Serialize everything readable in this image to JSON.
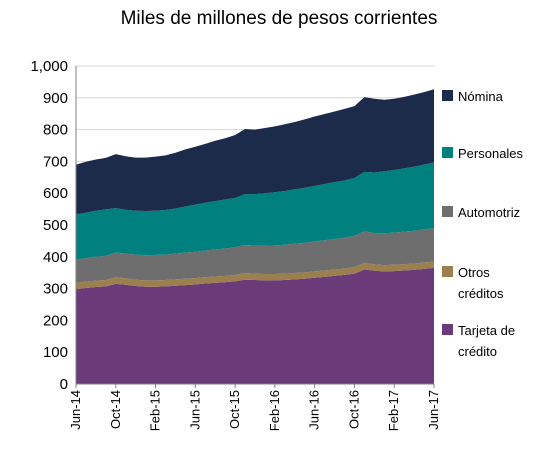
{
  "chart_data": {
    "type": "area",
    "stacked": true,
    "title": "Miles de millones de pesos corrientes",
    "xlabel": "",
    "ylabel": "",
    "ylim": [
      0,
      1000
    ],
    "y_ticks": [
      0,
      100,
      200,
      300,
      400,
      500,
      600,
      700,
      800,
      900,
      1000
    ],
    "y_tick_labels": [
      "0",
      "100",
      "200",
      "300",
      "400",
      "500",
      "600",
      "700",
      "800",
      "900",
      "1,000"
    ],
    "x": [
      "Jun-14",
      "Jul-14",
      "Aug-14",
      "Sep-14",
      "Oct-14",
      "Nov-14",
      "Dec-14",
      "Jan-15",
      "Feb-15",
      "Mar-15",
      "Apr-15",
      "May-15",
      "Jun-15",
      "Jul-15",
      "Aug-15",
      "Sep-15",
      "Oct-15",
      "Nov-15",
      "Dec-15",
      "Jan-16",
      "Feb-16",
      "Mar-16",
      "Apr-16",
      "May-16",
      "Jun-16",
      "Jul-16",
      "Aug-16",
      "Sep-16",
      "Oct-16",
      "Nov-16",
      "Dec-16",
      "Jan-17",
      "Feb-17",
      "Mar-17",
      "Apr-17",
      "May-17",
      "Jun-17"
    ],
    "x_tick_labels": [
      "Jun-14",
      "Oct-14",
      "Feb-15",
      "Jun-15",
      "Oct-15",
      "Feb-16",
      "Jun-16",
      "Oct-16",
      "Feb-17",
      "Jun-17"
    ],
    "legend_position": "right",
    "grid": true,
    "series": [
      {
        "name": "Tarjeta de crédito",
        "color": "#6b3a78",
        "values": [
          298,
          302,
          305,
          307,
          315,
          312,
          308,
          306,
          306,
          307,
          309,
          311,
          313,
          316,
          318,
          320,
          323,
          328,
          327,
          326,
          326,
          327,
          329,
          331,
          334,
          337,
          340,
          343,
          347,
          360,
          356,
          354,
          355,
          357,
          359,
          362,
          365
        ]
      },
      {
        "name": "Otros créditos",
        "color": "#9c7f4f",
        "values": [
          20,
          20,
          20,
          20,
          21,
          20,
          20,
          20,
          20,
          20,
          20,
          20,
          20,
          20,
          20,
          20,
          20,
          21,
          20,
          20,
          20,
          20,
          20,
          20,
          20,
          20,
          20,
          20,
          21,
          21,
          20,
          20,
          20,
          20,
          20,
          20,
          20
        ]
      },
      {
        "name": "Automotriz",
        "color": "#6e6e6e",
        "values": [
          73,
          74,
          75,
          76,
          77,
          78,
          79,
          79,
          80,
          80,
          81,
          82,
          83,
          84,
          85,
          86,
          87,
          88,
          88,
          89,
          90,
          91,
          92,
          93,
          94,
          95,
          96,
          97,
          98,
          99,
          99,
          100,
          101,
          102,
          103,
          104,
          105
        ]
      },
      {
        "name": "Personales",
        "color": "#00807f",
        "values": [
          142,
          143,
          145,
          146,
          140,
          138,
          138,
          139,
          139,
          140,
          142,
          145,
          148,
          150,
          152,
          154,
          155,
          160,
          162,
          165,
          167,
          169,
          171,
          173,
          175,
          177,
          179,
          180,
          182,
          187,
          190,
          195,
          197,
          199,
          201,
          204,
          207
        ]
      },
      {
        "name": "Nómina",
        "color": "#1c2b4a",
        "values": [
          157,
          160,
          161,
          162,
          170,
          168,
          167,
          168,
          170,
          172,
          175,
          180,
          182,
          185,
          190,
          193,
          198,
          205,
          203,
          205,
          207,
          210,
          212,
          215,
          218,
          220,
          222,
          225,
          226,
          235,
          232,
          225,
          224,
          225,
          227,
          228,
          230
        ]
      }
    ]
  }
}
